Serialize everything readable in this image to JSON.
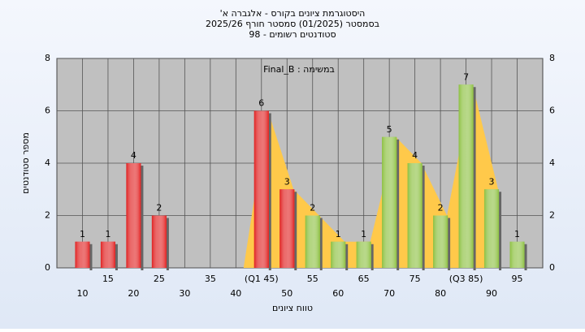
{
  "chart_data": {
    "type": "bar",
    "title": "היסטוגרמת ציונים בקורס - אלגברה א'",
    "subtitle": "בסמסטר  (01/2025)  סמסטר חורף 2025/26",
    "subtitle2": "סטודנטים רשומים - 98",
    "annotation": "במשימה : Final_B",
    "x_label": "טווח ציונים",
    "y_label": "מספר סטודנטים",
    "categories": [
      "10",
      "15",
      "20",
      "25",
      "30",
      "35",
      "40",
      "(Q1 45)",
      "50",
      "55",
      "60",
      "65",
      "70",
      "75",
      "80",
      "(Q3 85)",
      "90",
      "95"
    ],
    "values": [
      1,
      1,
      4,
      2,
      0,
      0,
      0,
      6,
      3,
      2,
      1,
      1,
      5,
      4,
      2,
      7,
      3,
      1
    ],
    "bar_colors": [
      "#e02020",
      "#e02020",
      "#e02020",
      "#e02020",
      "#e02020",
      "#e02020",
      "#e02020",
      "#e02020",
      "#e02020",
      "#8cc040",
      "#8cc040",
      "#8cc040",
      "#8cc040",
      "#8cc040",
      "#8cc040",
      "#8cc040",
      "#8cc040",
      "#8cc040"
    ],
    "area_color": "#ffc94a",
    "ylim": [
      0,
      8
    ],
    "yticks": [
      0,
      2,
      4,
      6,
      8
    ],
    "grid": true
  }
}
